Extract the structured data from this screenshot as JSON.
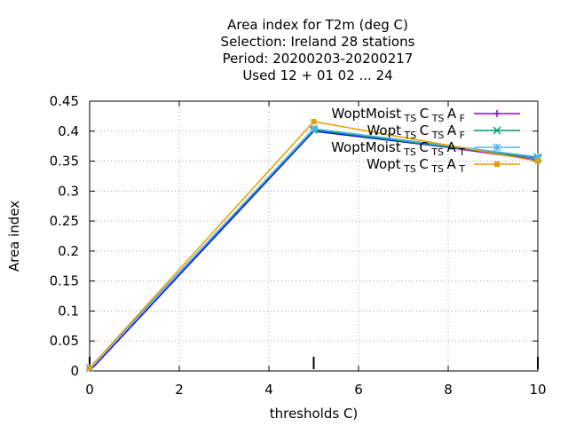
{
  "chart_data": {
    "type": "line",
    "title_lines": [
      "Area index  for T2m (deg C)",
      "Selection: Ireland     28 stations",
      "Period: 20200203-20200217",
      "Used  12 + 01 02 ... 24"
    ],
    "xlabel": "thresholds C)",
    "ylabel": "Area index",
    "xlim": [
      0,
      10
    ],
    "ylim": [
      0,
      0.45
    ],
    "xticks": [
      "0",
      "2",
      "4",
      "6",
      "8",
      "10"
    ],
    "yticks": [
      "0",
      "0.05",
      "0.1",
      "0.15",
      "0.2",
      "0.25",
      "0.3",
      "0.35",
      "0.4",
      "0.45"
    ],
    "grid": true,
    "legend_position": "top-right",
    "x": [
      0,
      5,
      10
    ],
    "series": [
      {
        "name": "WoptMoist_TS C_TS A_F",
        "legend_parts": [
          "WoptMoist",
          "TS",
          "C",
          "TS",
          "A",
          "F"
        ],
        "color": "#9400d3",
        "marker": "plus",
        "values": [
          0.005,
          0.404,
          0.352
        ]
      },
      {
        "name": "Wopt_TS C_TS A_F",
        "legend_parts": [
          "Wopt",
          "TS",
          "C",
          "TS",
          "A",
          "F"
        ],
        "color": "#009e73",
        "marker": "x",
        "values": [
          0.005,
          0.402,
          0.355
        ]
      },
      {
        "name": "WoptMoist_TS C_TS A_T",
        "legend_parts": [
          "WoptMoist",
          "TS",
          "C",
          "TS",
          "A",
          "T"
        ],
        "color": "#56b4e9",
        "marker": "star",
        "values": [
          0.005,
          0.404,
          0.357
        ]
      },
      {
        "name": "Wopt_TS C_TS A_T",
        "legend_parts": [
          "Wopt",
          "TS",
          "C",
          "TS",
          "A",
          "T"
        ],
        "color": "#e69f00",
        "marker": "square",
        "values": [
          0.005,
          0.416,
          0.35
        ]
      }
    ],
    "extra_line_color": "#0000ff",
    "extra_line_values": [
      0.0,
      0.4,
      0.355
    ],
    "markers_x": [
      0,
      5,
      10
    ]
  }
}
